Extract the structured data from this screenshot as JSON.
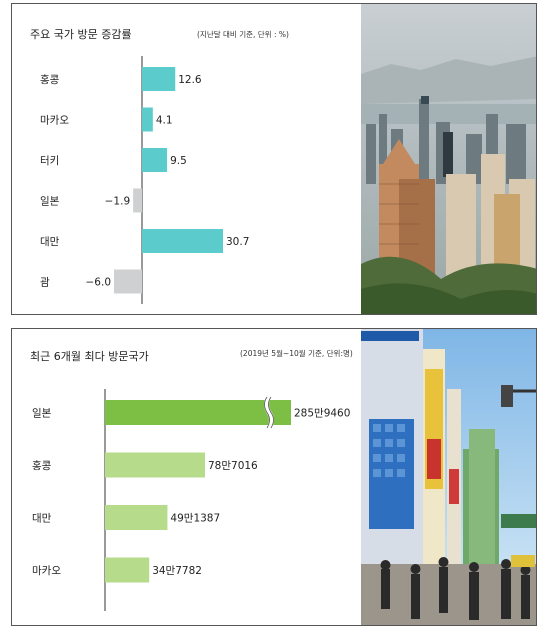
{
  "charts": [
    {
      "title": "주요 국가 방문 증감률",
      "note": "(지난달 대비 기준, 단위 : %)"
    },
    {
      "title": "최근 6개월 최다 방문국가",
      "note": "(2019년 5월~10월 기준, 단위:명)"
    }
  ],
  "chart_data": [
    {
      "type": "bar",
      "orientation": "horizontal",
      "title": "주요 국가 방문 증감률",
      "categories": [
        "홍콩",
        "마카오",
        "터키",
        "일본",
        "대만",
        "괌"
      ],
      "values": [
        12.6,
        4.1,
        9.5,
        -1.9,
        30.7,
        -6.0
      ],
      "value_labels": [
        "12.6",
        "4.1",
        "9.5",
        "−1.9",
        "30.7",
        "−6.0"
      ],
      "colors": {
        "positive": "#5ccbcb",
        "negative": "#cfd0d2"
      },
      "xlim": [
        -8,
        33
      ],
      "grid": false
    },
    {
      "type": "bar",
      "orientation": "horizontal",
      "title": "최근 6개월 최다 방문국가",
      "categories": [
        "일본",
        "홍콩",
        "대만",
        "마카오"
      ],
      "values": [
        2859460,
        787016,
        491387,
        347782
      ],
      "value_labels": [
        "285만9460",
        "78만7016",
        "49만1387",
        "34만7782"
      ],
      "axis_break": true,
      "colors": {
        "first": "#7dbf45",
        "others": "#b5db8b"
      },
      "grid": false
    }
  ]
}
